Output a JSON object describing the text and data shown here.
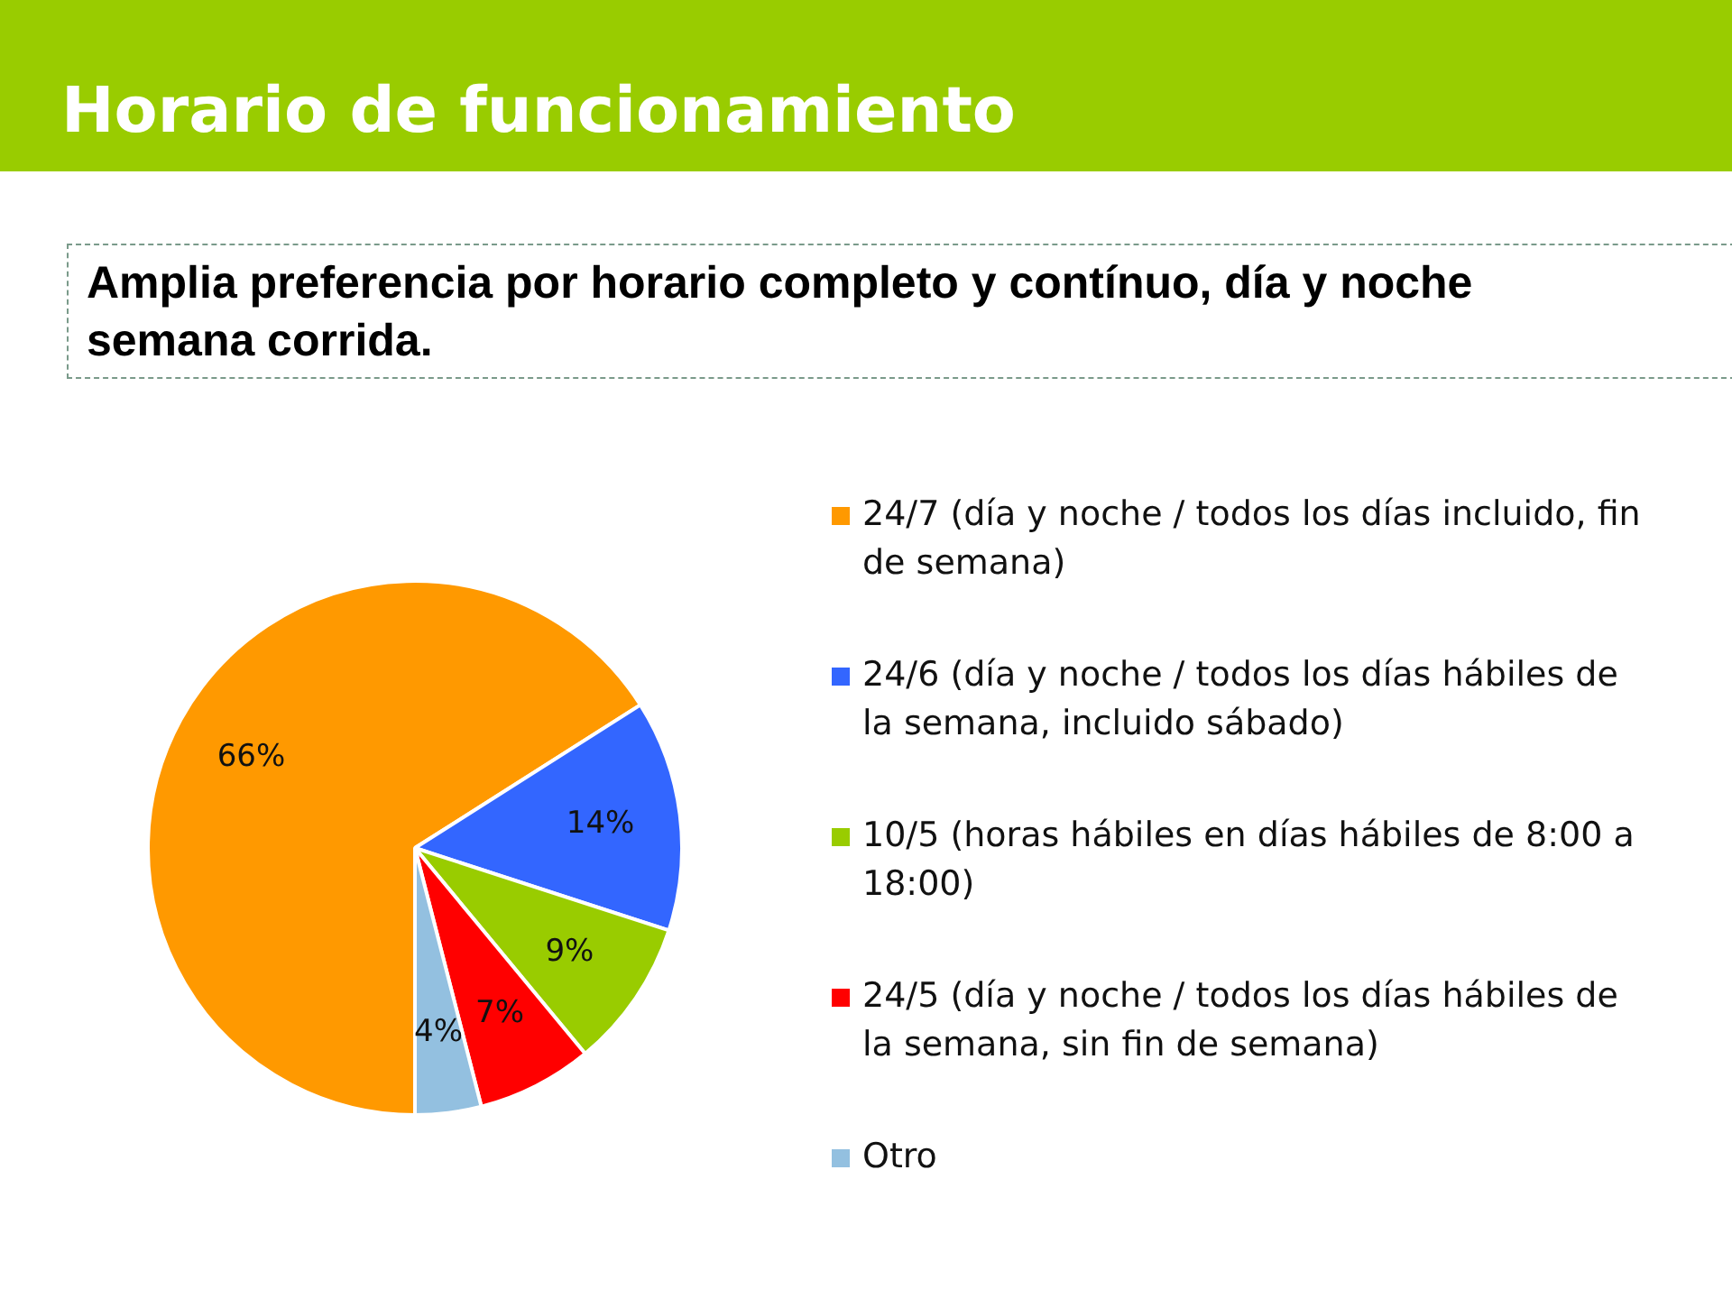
{
  "chart_data": {
    "type": "pie",
    "title": "Horario de funcionamiento",
    "subtitle": "Amplia preferencia por horario completo y contínuo, día y noche semana corrida.",
    "categories": [
      "24/7 (día y noche / todos los días incluido, fin de semana)",
      "24/6 (día y noche / todos los días hábiles de la semana, incluido sábado)",
      "10/5 (horas hábiles en días hábiles de 8:00 a 18:00)",
      "24/5 (día y noche / todos los días hábiles de la semana, sin fin de semana)",
      "Otro"
    ],
    "values": [
      66,
      14,
      9,
      7,
      4
    ],
    "colors": [
      "#ff9900",
      "#3366ff",
      "#99cc00",
      "#ff0000",
      "#93c0e0"
    ],
    "value_labels": [
      "66%",
      "14%",
      "9%",
      "7%",
      "4%"
    ],
    "legend": "right"
  }
}
